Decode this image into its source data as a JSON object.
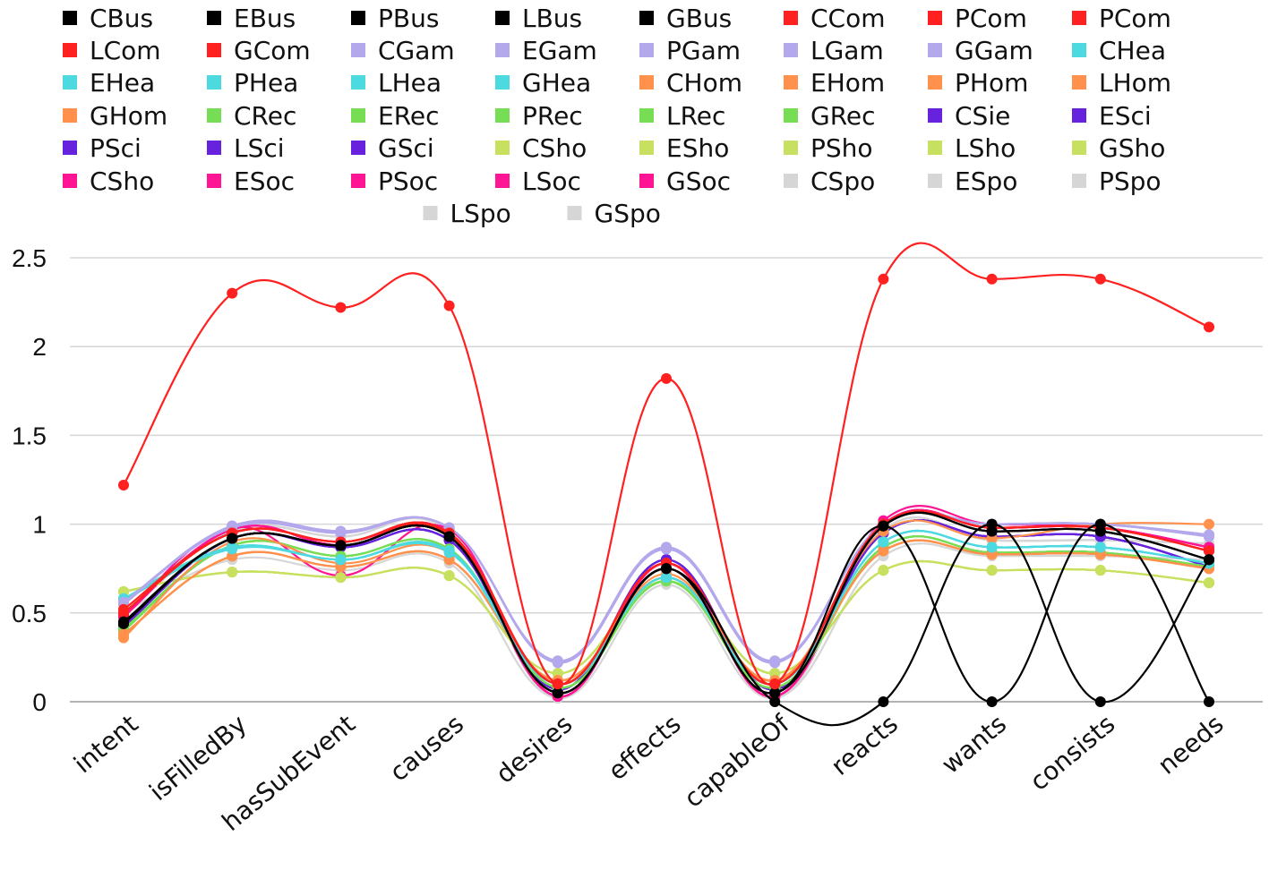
{
  "chart_data": {
    "type": "line",
    "title": "",
    "xlabel": "",
    "ylabel": "",
    "ylim": [
      0,
      2.5
    ],
    "yticks": [
      0,
      0.5,
      1,
      1.5,
      2,
      2.5
    ],
    "ytick_labels": [
      "0",
      "0.5",
      "1",
      "1.5",
      "2",
      "2.5"
    ],
    "grid": true,
    "legend_position": "top",
    "categories": [
      "intent",
      "isFilledBy",
      "hasSubEvent",
      "causes",
      "desires",
      "effects",
      "capableOf",
      "reacts",
      "wants",
      "consists",
      "needs"
    ],
    "series": [
      {
        "name": "CBus",
        "color": "#000000",
        "values": [
          0.44,
          0.92,
          0.88,
          0.93,
          0.05,
          0.75,
          0.05,
          0.99,
          0.0,
          1.0,
          0.0
        ]
      },
      {
        "name": "EBus",
        "color": "#000000",
        "values": [
          0.45,
          0.92,
          0.88,
          0.93,
          0.05,
          0.75,
          0.0,
          0.0,
          1.0,
          0.0,
          0.8
        ]
      },
      {
        "name": "PBus",
        "color": "#000000",
        "values": [
          0.44,
          0.92,
          0.88,
          0.93,
          0.05,
          0.75,
          0.05,
          0.99,
          0.96,
          0.96,
          0.8
        ]
      },
      {
        "name": "LBus",
        "color": "#000000",
        "values": [
          0.45,
          0.92,
          0.88,
          0.93,
          0.05,
          0.75,
          0.05,
          0.99,
          0.96,
          0.96,
          0.8
        ]
      },
      {
        "name": "GBus",
        "color": "#000000",
        "values": [
          0.44,
          0.92,
          0.88,
          0.93,
          0.05,
          0.75,
          0.05,
          0.99,
          0.96,
          0.96,
          0.8
        ]
      },
      {
        "name": "CCom",
        "color": "#ff2020",
        "values": [
          1.22,
          2.3,
          2.22,
          2.23,
          0.1,
          1.82,
          0.1,
          2.38,
          2.38,
          2.38,
          2.11
        ]
      },
      {
        "name": "PCom",
        "color": "#ff2020",
        "values": [
          0.5,
          0.95,
          0.9,
          0.95,
          0.1,
          0.78,
          0.1,
          1.0,
          0.98,
          0.98,
          0.85
        ]
      },
      {
        "name": "PCom",
        "color": "#ff2020",
        "values": [
          0.5,
          0.95,
          0.9,
          0.95,
          0.1,
          0.78,
          0.1,
          1.0,
          0.98,
          0.98,
          0.85
        ]
      },
      {
        "name": "LCom",
        "color": "#ff2020",
        "values": [
          0.52,
          0.95,
          0.9,
          0.94,
          0.1,
          0.78,
          0.1,
          1.0,
          0.98,
          0.98,
          0.85
        ]
      },
      {
        "name": "GCom",
        "color": "#ff2020",
        "values": [
          0.5,
          0.95,
          0.9,
          0.95,
          0.1,
          0.78,
          0.1,
          1.0,
          0.98,
          0.98,
          0.85
        ]
      },
      {
        "name": "CGam",
        "color": "#b3a8ec",
        "values": [
          0.55,
          0.99,
          0.96,
          0.98,
          0.23,
          0.87,
          0.23,
          1.0,
          1.0,
          1.0,
          0.94
        ]
      },
      {
        "name": "EGam",
        "color": "#b3a8ec",
        "values": [
          0.55,
          0.99,
          0.96,
          0.98,
          0.23,
          0.87,
          0.23,
          1.0,
          1.0,
          1.0,
          0.94
        ]
      },
      {
        "name": "PGam",
        "color": "#b3a8ec",
        "values": [
          0.55,
          0.98,
          0.95,
          0.98,
          0.22,
          0.86,
          0.22,
          1.0,
          1.0,
          1.0,
          0.93
        ]
      },
      {
        "name": "LGam",
        "color": "#b3a8ec",
        "values": [
          0.56,
          0.98,
          0.95,
          0.98,
          0.22,
          0.86,
          0.22,
          1.0,
          1.0,
          1.0,
          0.93
        ]
      },
      {
        "name": "GGam",
        "color": "#b3a8ec",
        "values": [
          0.55,
          0.99,
          0.96,
          0.98,
          0.23,
          0.87,
          0.23,
          1.0,
          1.0,
          1.0,
          0.94
        ]
      },
      {
        "name": "CHea",
        "color": "#4dd9e0",
        "values": [
          0.58,
          0.87,
          0.8,
          0.85,
          0.1,
          0.7,
          0.1,
          0.9,
          0.87,
          0.87,
          0.78
        ]
      },
      {
        "name": "EHea",
        "color": "#4dd9e0",
        "values": [
          0.58,
          0.87,
          0.8,
          0.85,
          0.1,
          0.7,
          0.1,
          0.9,
          0.87,
          0.87,
          0.78
        ]
      },
      {
        "name": "PHea",
        "color": "#4dd9e0",
        "values": [
          0.57,
          0.86,
          0.8,
          0.84,
          0.1,
          0.7,
          0.1,
          0.9,
          0.87,
          0.87,
          0.78
        ]
      },
      {
        "name": "LHea",
        "color": "#4dd9e0",
        "values": [
          0.58,
          0.87,
          0.8,
          0.85,
          0.1,
          0.7,
          0.1,
          0.9,
          0.87,
          0.87,
          0.78
        ]
      },
      {
        "name": "GHea",
        "color": "#4dd9e0",
        "values": [
          0.58,
          0.87,
          0.8,
          0.85,
          0.1,
          0.7,
          0.1,
          0.9,
          0.87,
          0.87,
          0.78
        ]
      },
      {
        "name": "CHom",
        "color": "#ff914d",
        "values": [
          0.36,
          0.9,
          0.78,
          0.84,
          0.12,
          0.72,
          0.12,
          0.96,
          0.92,
          1.0,
          1.0
        ]
      },
      {
        "name": "EHom",
        "color": "#ff914d",
        "values": [
          0.38,
          0.82,
          0.76,
          0.8,
          0.12,
          0.7,
          0.12,
          0.85,
          0.83,
          0.83,
          0.75
        ]
      },
      {
        "name": "PHom",
        "color": "#ff914d",
        "values": [
          0.38,
          0.82,
          0.76,
          0.8,
          0.12,
          0.7,
          0.12,
          0.85,
          0.83,
          0.83,
          0.75
        ]
      },
      {
        "name": "LHom",
        "color": "#ff914d",
        "values": [
          0.38,
          0.82,
          0.76,
          0.8,
          0.12,
          0.7,
          0.12,
          0.85,
          0.83,
          0.83,
          0.75
        ]
      },
      {
        "name": "GHom",
        "color": "#ff914d",
        "values": [
          0.38,
          0.82,
          0.76,
          0.8,
          0.12,
          0.7,
          0.12,
          0.85,
          0.83,
          0.83,
          0.75
        ]
      },
      {
        "name": "CRec",
        "color": "#77dd55",
        "values": [
          0.4,
          0.88,
          0.82,
          0.86,
          0.08,
          0.68,
          0.08,
          0.87,
          0.84,
          0.84,
          0.76
        ]
      },
      {
        "name": "ERec",
        "color": "#77dd55",
        "values": [
          0.4,
          0.88,
          0.82,
          0.86,
          0.08,
          0.68,
          0.08,
          0.87,
          0.84,
          0.84,
          0.76
        ]
      },
      {
        "name": "PRec",
        "color": "#77dd55",
        "values": [
          0.4,
          0.88,
          0.82,
          0.86,
          0.08,
          0.68,
          0.08,
          0.87,
          0.84,
          0.84,
          0.76
        ]
      },
      {
        "name": "LRec",
        "color": "#77dd55",
        "values": [
          0.41,
          0.88,
          0.82,
          0.86,
          0.08,
          0.68,
          0.08,
          0.87,
          0.84,
          0.84,
          0.76
        ]
      },
      {
        "name": "GRec",
        "color": "#77dd55",
        "values": [
          0.4,
          0.88,
          0.82,
          0.86,
          0.08,
          0.68,
          0.08,
          0.87,
          0.84,
          0.84,
          0.76
        ]
      },
      {
        "name": "CSie",
        "color": "#6622dd",
        "values": [
          0.42,
          0.92,
          0.87,
          0.91,
          0.07,
          0.8,
          0.07,
          0.95,
          0.93,
          0.93,
          0.76
        ]
      },
      {
        "name": "ESci",
        "color": "#6622dd",
        "values": [
          0.42,
          0.92,
          0.87,
          0.91,
          0.07,
          0.8,
          0.07,
          0.95,
          0.93,
          0.93,
          0.76
        ]
      },
      {
        "name": "PSci",
        "color": "#6622dd",
        "values": [
          0.42,
          0.92,
          0.87,
          0.91,
          0.07,
          0.8,
          0.07,
          0.95,
          0.93,
          0.93,
          0.76
        ]
      },
      {
        "name": "LSci",
        "color": "#6622dd",
        "values": [
          0.43,
          0.92,
          0.87,
          0.91,
          0.07,
          0.8,
          0.07,
          0.95,
          0.93,
          0.93,
          0.76
        ]
      },
      {
        "name": "GSci",
        "color": "#6622dd",
        "values": [
          0.42,
          0.92,
          0.87,
          0.91,
          0.07,
          0.8,
          0.07,
          0.95,
          0.93,
          0.93,
          0.76
        ]
      },
      {
        "name": "CSho",
        "color": "#c8e060",
        "values": [
          0.62,
          0.73,
          0.7,
          0.71,
          0.16,
          0.68,
          0.16,
          0.74,
          0.74,
          0.74,
          0.67
        ]
      },
      {
        "name": "ESho",
        "color": "#c8e060",
        "values": [
          0.62,
          0.73,
          0.7,
          0.71,
          0.16,
          0.68,
          0.16,
          0.74,
          0.74,
          0.74,
          0.67
        ]
      },
      {
        "name": "PSho",
        "color": "#c8e060",
        "values": [
          0.62,
          0.73,
          0.7,
          0.71,
          0.16,
          0.68,
          0.16,
          0.74,
          0.74,
          0.74,
          0.67
        ]
      },
      {
        "name": "LSho",
        "color": "#c8e060",
        "values": [
          0.62,
          0.73,
          0.7,
          0.71,
          0.16,
          0.68,
          0.16,
          0.74,
          0.74,
          0.74,
          0.67
        ]
      },
      {
        "name": "GSho",
        "color": "#c8e060",
        "values": [
          0.62,
          0.73,
          0.7,
          0.71,
          0.16,
          0.68,
          0.16,
          0.74,
          0.74,
          0.74,
          0.67
        ]
      },
      {
        "name": "CSho",
        "color": "#ff1493",
        "values": [
          0.48,
          0.98,
          0.71,
          0.97,
          0.03,
          0.78,
          0.03,
          1.02,
          1.0,
          0.98,
          0.87
        ]
      },
      {
        "name": "ESoc",
        "color": "#ff1493",
        "values": [
          0.48,
          0.97,
          0.88,
          0.95,
          0.03,
          0.78,
          0.03,
          1.0,
          0.98,
          0.98,
          0.87
        ]
      },
      {
        "name": "PSoc",
        "color": "#ff1493",
        "values": [
          0.48,
          0.97,
          0.88,
          0.95,
          0.03,
          0.78,
          0.03,
          1.0,
          0.98,
          0.98,
          0.87
        ]
      },
      {
        "name": "LSoc",
        "color": "#ff1493",
        "values": [
          0.48,
          0.97,
          0.88,
          0.95,
          0.03,
          0.78,
          0.03,
          1.0,
          0.98,
          0.98,
          0.87
        ]
      },
      {
        "name": "GSoc",
        "color": "#ff1493",
        "values": [
          0.48,
          0.97,
          0.88,
          0.95,
          0.03,
          0.78,
          0.03,
          1.0,
          0.98,
          0.98,
          0.87
        ]
      },
      {
        "name": "CSpo",
        "color": "#d6d6d6",
        "values": [
          0.48,
          0.96,
          0.93,
          0.96,
          0.02,
          0.8,
          0.02,
          0.97,
          0.91,
          0.91,
          0.89
        ]
      },
      {
        "name": "ESpo",
        "color": "#d6d6d6",
        "values": [
          0.5,
          0.96,
          0.93,
          0.96,
          0.02,
          0.8,
          0.02,
          0.97,
          0.91,
          0.91,
          0.89
        ]
      },
      {
        "name": "PSpo",
        "color": "#d6d6d6",
        "values": [
          0.5,
          0.8,
          0.74,
          0.78,
          0.02,
          0.66,
          0.02,
          0.82,
          0.82,
          0.82,
          0.8
        ]
      },
      {
        "name": "LSpo",
        "color": "#d6d6d6",
        "values": [
          0.5,
          0.96,
          0.93,
          0.96,
          0.02,
          0.8,
          0.02,
          0.97,
          0.91,
          0.91,
          0.89
        ]
      },
      {
        "name": "GSpo",
        "color": "#d6d6d6",
        "values": [
          0.5,
          0.96,
          0.93,
          0.96,
          0.02,
          0.8,
          0.02,
          0.97,
          0.91,
          0.91,
          0.89
        ]
      }
    ]
  }
}
